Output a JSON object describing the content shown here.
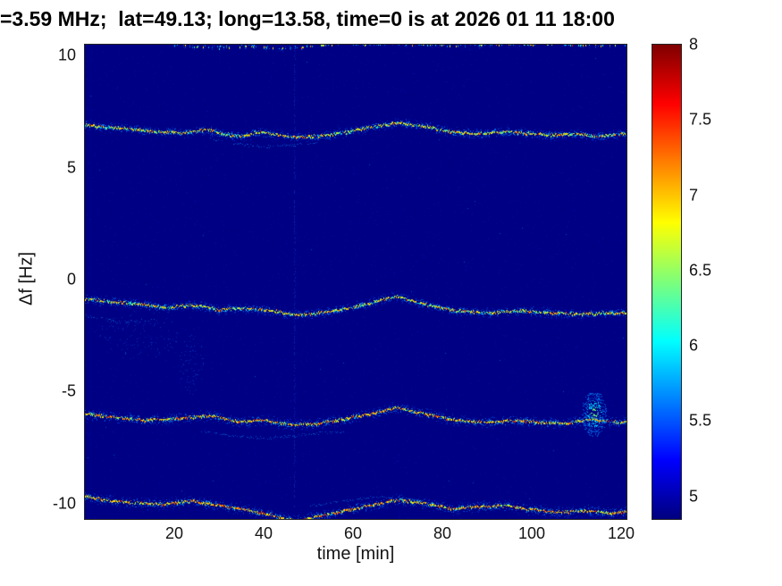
{
  "chart_data": {
    "type": "heatmap",
    "title": "=3.59 MHz;  lat=49.13; long=13.58, time=0 is at 2026 01 11 18:00",
    "xlabel": "time [min]",
    "ylabel": "Δf [Hz]",
    "xlim": [
      0,
      121.2
    ],
    "ylim": [
      -10.7,
      10.5
    ],
    "xticks": [
      20,
      40,
      60,
      80,
      100,
      120
    ],
    "yticks": [
      10,
      5,
      0,
      -5,
      -10
    ],
    "grid": false,
    "colorbar": {
      "ticks": [
        8,
        7.5,
        7,
        6.5,
        6,
        5.5,
        5
      ],
      "range": [
        4.85,
        8
      ],
      "colormap": "jet",
      "stops": [
        {
          "color": "#7f0000",
          "pos": "0%"
        },
        {
          "color": "#ff0000",
          "pos": "12.5%"
        },
        {
          "color": "#ff8000",
          "pos": "25%"
        },
        {
          "color": "#ffff00",
          "pos": "37.5%"
        },
        {
          "color": "#7dff7a",
          "pos": "50%"
        },
        {
          "color": "#00ffff",
          "pos": "62.5%"
        },
        {
          "color": "#0080ff",
          "pos": "75%"
        },
        {
          "color": "#0000ff",
          "pos": "87.5%"
        },
        {
          "color": "#00007f",
          "pos": "100%"
        }
      ]
    },
    "colors": {
      "background": "#000084",
      "halo": "#00a8ff",
      "core": "#ffe000"
    },
    "traces": [
      {
        "name": "doppler-trace-top-edge",
        "x": [
          20,
          28,
          36,
          44,
          52,
          60,
          68,
          84,
          92,
          100,
          110,
          120
        ],
        "df": [
          10.5,
          10.35,
          10.45,
          10.3,
          10.45,
          10.55,
          10.6,
          10.45,
          10.5,
          10.55,
          10.5,
          10.45
        ],
        "hot": 0.05,
        "spread": 2,
        "density": 0.32,
        "core": 0.5,
        "range": [
          19,
          122
        ]
      },
      {
        "name": "doppler-trace-upper",
        "x": [
          0,
          8,
          16,
          22,
          27,
          31,
          35,
          39,
          43,
          47,
          52,
          58,
          64,
          70,
          76,
          82,
          88,
          93,
          98,
          104,
          110,
          115,
          120,
          122
        ],
        "df": [
          6.9,
          6.75,
          6.6,
          6.55,
          6.7,
          6.5,
          6.4,
          6.6,
          6.45,
          6.35,
          6.4,
          6.55,
          6.8,
          7.0,
          6.85,
          6.6,
          6.5,
          6.6,
          6.55,
          6.45,
          6.5,
          6.4,
          6.5,
          6.55
        ],
        "hot": 0.08,
        "spread": 3.5
      },
      {
        "name": "doppler-trace-middle",
        "x": [
          0,
          6,
          12,
          18,
          24,
          30,
          36,
          42,
          47,
          53,
          60,
          66,
          70,
          76,
          83,
          90,
          97,
          104,
          111,
          118,
          122
        ],
        "df": [
          -0.85,
          -1.0,
          -1.1,
          -1.25,
          -1.15,
          -1.35,
          -1.3,
          -1.4,
          -1.6,
          -1.5,
          -1.25,
          -0.95,
          -0.75,
          -1.1,
          -1.4,
          -1.5,
          -1.4,
          -1.5,
          -1.55,
          -1.5,
          -1.5
        ],
        "hot": 0.1,
        "spread": 3.5
      },
      {
        "name": "doppler-trace-lower",
        "x": [
          0,
          8,
          15,
          22,
          28,
          34,
          40,
          46,
          52,
          58,
          64,
          70,
          76,
          83,
          90,
          96,
          102,
          108,
          113,
          118,
          122
        ],
        "df": [
          -6.0,
          -6.2,
          -6.3,
          -6.2,
          -6.1,
          -6.35,
          -6.3,
          -6.5,
          -6.45,
          -6.25,
          -6.0,
          -5.75,
          -6.0,
          -6.3,
          -6.4,
          -6.3,
          -6.4,
          -6.45,
          -6.25,
          -6.35,
          -6.4
        ],
        "hot": 0.25,
        "spread": 4
      },
      {
        "name": "doppler-trace-bottom-edge",
        "x": [
          0,
          6,
          12,
          18,
          24,
          30,
          36,
          42,
          47,
          52,
          58,
          64,
          70,
          76,
          82,
          88,
          94,
          100,
          106,
          112,
          118,
          122
        ],
        "df": [
          -9.7,
          -9.9,
          -10.0,
          -10.05,
          -9.9,
          -10.1,
          -10.3,
          -10.55,
          -10.8,
          -10.6,
          -10.35,
          -10.1,
          -9.85,
          -10.0,
          -10.25,
          -10.15,
          -10.1,
          -10.3,
          -10.4,
          -10.35,
          -10.45,
          -10.4
        ],
        "hot": 0.3,
        "spread": 4
      }
    ],
    "wisps": [
      {
        "x": [
          28,
          34,
          40,
          46,
          52
        ],
        "df": [
          6.3,
          6.05,
          5.95,
          6.0,
          6.15
        ]
      },
      {
        "x": [
          0,
          8,
          16
        ],
        "df": [
          -1.6,
          -1.9,
          -1.8
        ]
      },
      {
        "x": [
          26,
          34,
          42,
          50,
          58
        ],
        "df": [
          -6.8,
          -7.0,
          -7.1,
          -6.9,
          -6.8
        ]
      },
      {
        "x": [
          50,
          58,
          66,
          74
        ],
        "df": [
          -10.15,
          -9.9,
          -9.7,
          -9.9
        ]
      }
    ],
    "blobs": [
      {
        "t": 114,
        "df": -6.0,
        "rx": 14,
        "ry": 26,
        "n": 500
      },
      {
        "t": 12,
        "df": -2.5,
        "rx": 45,
        "ry": 28,
        "n": 150,
        "dim": true
      },
      {
        "t": 24,
        "df": -3.8,
        "rx": 14,
        "ry": 34,
        "n": 100,
        "dim": true
      }
    ],
    "vlines": [
      {
        "t": 47
      }
    ]
  }
}
